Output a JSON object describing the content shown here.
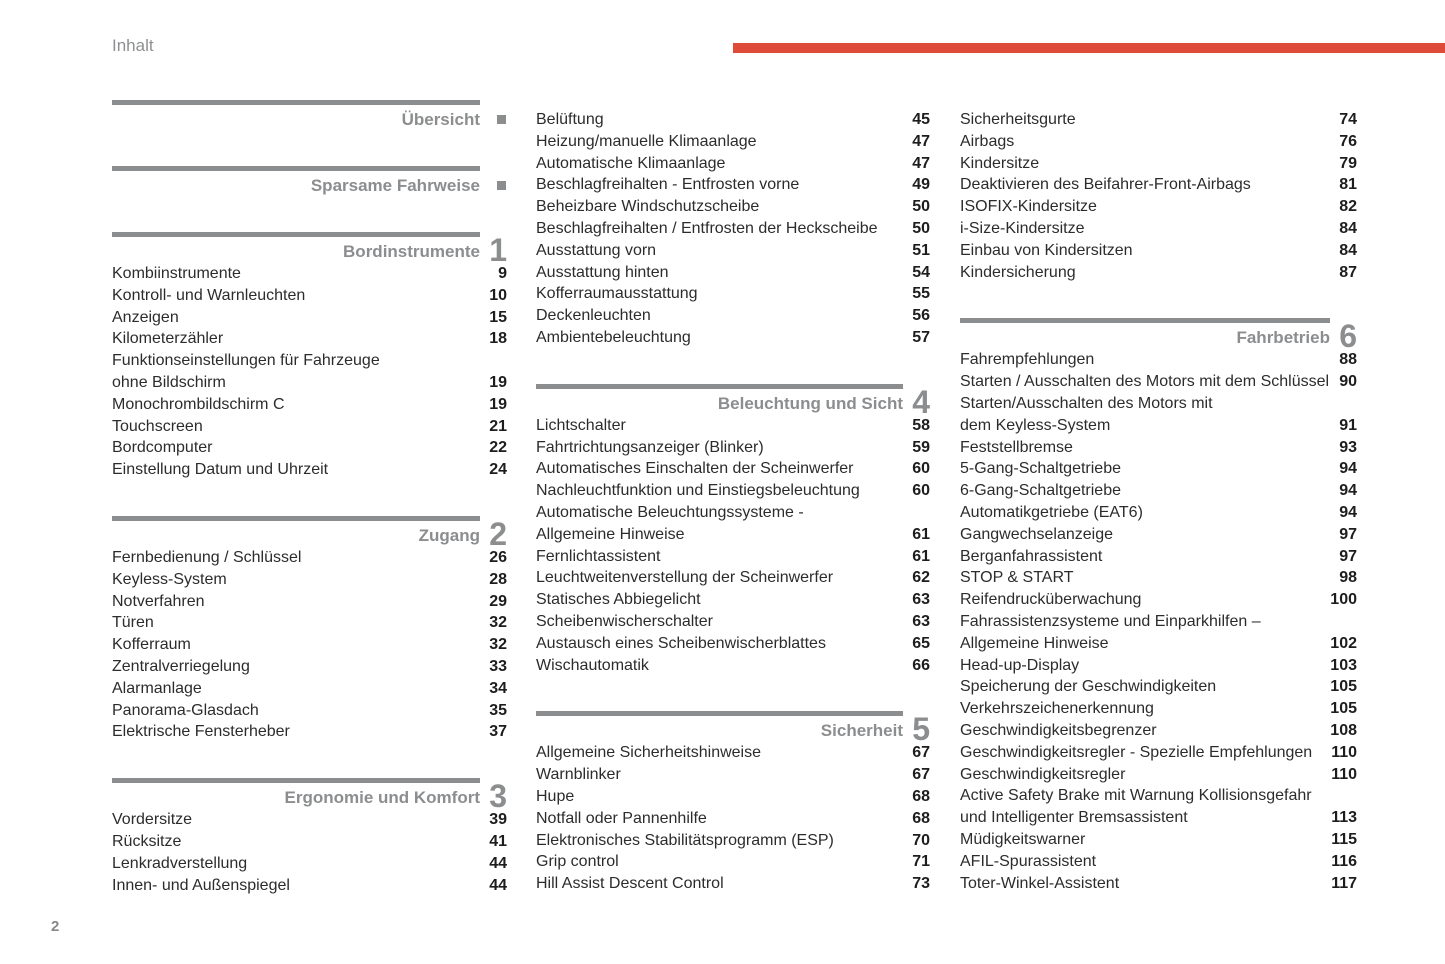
{
  "page": {
    "header": "Inhalt",
    "page_number": "2"
  },
  "colors": {
    "accent_red": "#e04a38",
    "section_gray": "#8b8d8f",
    "entry_text": "#2c2c2c"
  },
  "columns": [
    {
      "blocks": [
        {
          "title": "Übersicht",
          "marker": "square",
          "entries": []
        },
        {
          "title": "Sparsame Fahrweise",
          "marker": "square",
          "entries": []
        },
        {
          "title": "Bordinstrumente",
          "marker": "1",
          "entries": [
            {
              "label": "Kombiinstrumente",
              "page": "9"
            },
            {
              "label": "Kontroll- und Warnleuchten",
              "page": "10"
            },
            {
              "label": "Anzeigen",
              "page": "15"
            },
            {
              "label": "Kilometerzähler",
              "page": "18"
            },
            {
              "label": "Funktionseinstellungen für Fahrzeuge",
              "page": ""
            },
            {
              "label": "ohne Bildschirm",
              "page": "19"
            },
            {
              "label": "Monochrombildschirm C",
              "page": "19"
            },
            {
              "label": "Touchscreen",
              "page": "21"
            },
            {
              "label": "Bordcomputer",
              "page": "22"
            },
            {
              "label": "Einstellung Datum und Uhrzeit",
              "page": "24"
            }
          ]
        },
        {
          "title": "Zugang",
          "marker": "2",
          "entries": [
            {
              "label": "Fernbedienung / Schlüssel",
              "page": "26"
            },
            {
              "label": "Keyless-System",
              "page": "28"
            },
            {
              "label": "Notverfahren",
              "page": "29"
            },
            {
              "label": "Türen",
              "page": "32"
            },
            {
              "label": "Kofferraum",
              "page": "32"
            },
            {
              "label": "Zentralverriegelung",
              "page": "33"
            },
            {
              "label": "Alarmanlage",
              "page": "34"
            },
            {
              "label": "Panorama-Glasdach",
              "page": "35"
            },
            {
              "label": "Elektrische Fensterheber",
              "page": "37"
            }
          ]
        },
        {
          "title": "Ergonomie und Komfort",
          "marker": "3",
          "entries": [
            {
              "label": "Vordersitze",
              "page": "39"
            },
            {
              "label": "Rücksitze",
              "page": "41"
            },
            {
              "label": "Lenkradverstellung",
              "page": "44"
            },
            {
              "label": "Innen- und Außenspiegel",
              "page": "44"
            }
          ]
        }
      ]
    },
    {
      "blocks": [
        {
          "title": null,
          "marker": null,
          "entries": [
            {
              "label": "Belüftung",
              "page": "45"
            },
            {
              "label": "Heizung/manuelle Klimaanlage",
              "page": "47"
            },
            {
              "label": "Automatische Klimaanlage",
              "page": "47"
            },
            {
              "label": "Beschlagfreihalten - Entfrosten vorne",
              "page": "49"
            },
            {
              "label": "Beheizbare Windschutzscheibe",
              "page": "50"
            },
            {
              "label": "Beschlagfreihalten / Entfrosten der Heckscheibe",
              "page": "50"
            },
            {
              "label": "Ausstattung vorn",
              "page": "51"
            },
            {
              "label": "Ausstattung hinten",
              "page": "54"
            },
            {
              "label": "Kofferraumausstattung",
              "page": "55"
            },
            {
              "label": "Deckenleuchten",
              "page": "56"
            },
            {
              "label": "Ambientebeleuchtung",
              "page": "57"
            }
          ]
        },
        {
          "title": "Beleuchtung und Sicht",
          "marker": "4",
          "entries": [
            {
              "label": "Lichtschalter",
              "page": "58"
            },
            {
              "label": "Fahrtrichtungsanzeiger (Blinker)",
              "page": "59"
            },
            {
              "label": "Automatisches Einschalten der Scheinwerfer",
              "page": "60"
            },
            {
              "label": "Nachleuchtfunktion und Einstiegsbeleuchtung",
              "page": "60"
            },
            {
              "label": "Automatische Beleuchtungssysteme -",
              "page": ""
            },
            {
              "label": "Allgemeine Hinweise",
              "page": "61"
            },
            {
              "label": "Fernlichtassistent",
              "page": "61"
            },
            {
              "label": "Leuchtweitenverstellung der Scheinwerfer",
              "page": "62"
            },
            {
              "label": "Statisches Abbiegelicht",
              "page": "63"
            },
            {
              "label": "Scheibenwischerschalter",
              "page": "63"
            },
            {
              "label": "Austausch eines Scheibenwischerblattes",
              "page": "65"
            },
            {
              "label": "Wischautomatik",
              "page": "66"
            }
          ]
        },
        {
          "title": "Sicherheit",
          "marker": "5",
          "entries": [
            {
              "label": "Allgemeine Sicherheitshinweise",
              "page": "67"
            },
            {
              "label": "Warnblinker",
              "page": "67"
            },
            {
              "label": "Hupe",
              "page": "68"
            },
            {
              "label": "Notfall oder Pannenhilfe",
              "page": "68"
            },
            {
              "label": "Elektronisches Stabilitätsprogramm (ESP)",
              "page": "70"
            },
            {
              "label": "Grip control",
              "page": "71"
            },
            {
              "label": "Hill Assist Descent Control",
              "page": "73"
            }
          ]
        }
      ]
    },
    {
      "blocks": [
        {
          "title": null,
          "marker": null,
          "entries": [
            {
              "label": "Sicherheitsgurte",
              "page": "74"
            },
            {
              "label": "Airbags",
              "page": "76"
            },
            {
              "label": "Kindersitze",
              "page": "79"
            },
            {
              "label": "Deaktivieren des Beifahrer-Front-Airbags",
              "page": "81"
            },
            {
              "label": "ISOFIX-Kindersitze",
              "page": "82"
            },
            {
              "label": "i-Size-Kindersitze",
              "page": "84"
            },
            {
              "label": "Einbau von Kindersitzen",
              "page": "84"
            },
            {
              "label": "Kindersicherung",
              "page": "87"
            }
          ]
        },
        {
          "title": "Fahrbetrieb",
          "marker": "6",
          "entries": [
            {
              "label": "Fahrempfehlungen",
              "page": "88"
            },
            {
              "label": "Starten / Ausschalten des Motors mit dem Schlüssel",
              "page": "90"
            },
            {
              "label": "Starten/Ausschalten des Motors mit",
              "page": ""
            },
            {
              "label": "dem Keyless-System",
              "page": "91"
            },
            {
              "label": "Feststellbremse",
              "page": "93"
            },
            {
              "label": "5-Gang-Schaltgetriebe",
              "page": "94"
            },
            {
              "label": "6-Gang-Schaltgetriebe",
              "page": "94"
            },
            {
              "label": "Automatikgetriebe (EAT6)",
              "page": "94"
            },
            {
              "label": "Gangwechselanzeige",
              "page": "97"
            },
            {
              "label": "Berganfahrassistent",
              "page": "97"
            },
            {
              "label": "STOP & START",
              "page": "98"
            },
            {
              "label": "Reifendrucküberwachung",
              "page": "100"
            },
            {
              "label": "Fahrassistenzsysteme und Einparkhilfen –",
              "page": ""
            },
            {
              "label": "Allgemeine Hinweise",
              "page": "102"
            },
            {
              "label": "Head-up-Display",
              "page": "103"
            },
            {
              "label": "Speicherung der Geschwindigkeiten",
              "page": "105"
            },
            {
              "label": "Verkehrszeichenerkennung",
              "page": "105"
            },
            {
              "label": "Geschwindigkeitsbegrenzer",
              "page": "108"
            },
            {
              "label": "Geschwindigkeitsregler - Spezielle Empfehlungen",
              "page": "110"
            },
            {
              "label": "Geschwindigkeitsregler",
              "page": "110"
            },
            {
              "label": "Active Safety Brake mit Warnung Kollisionsgefahr",
              "page": ""
            },
            {
              "label": "und Intelligenter Bremsassistent",
              "page": "113"
            },
            {
              "label": "Müdigkeitswarner",
              "page": "115"
            },
            {
              "label": "AFIL-Spurassistent",
              "page": "116"
            },
            {
              "label": "Toter-Winkel-Assistent",
              "page": "117"
            }
          ]
        }
      ]
    }
  ]
}
